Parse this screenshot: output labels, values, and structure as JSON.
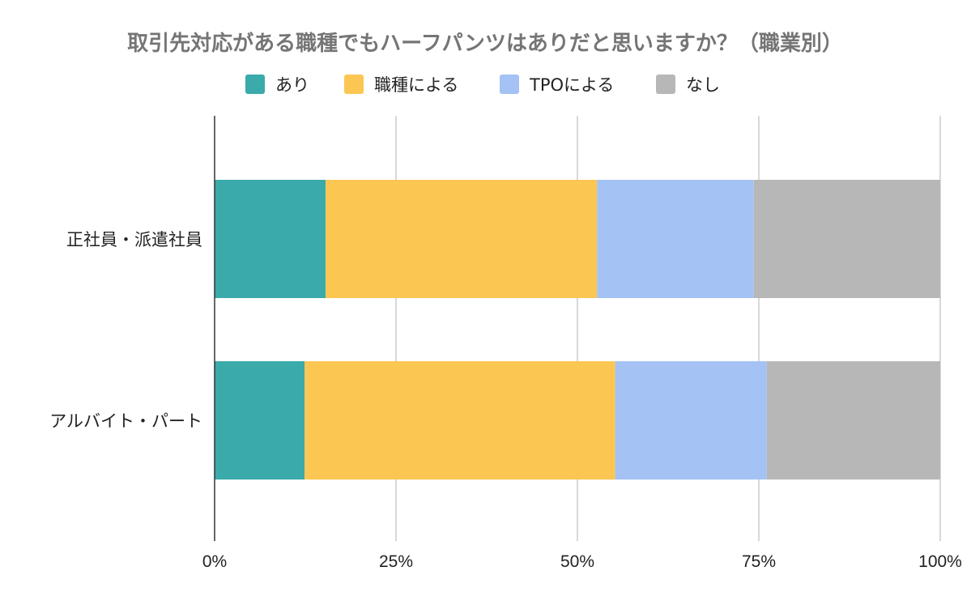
{
  "chart_data": {
    "type": "bar",
    "orientation": "horizontal",
    "stacked": true,
    "title": "取引先対応がある職種でもハーフパンツはありだと思いますか？（職業別）",
    "categories": [
      "正社員・派遣社員",
      "アルバイト・パート"
    ],
    "series": [
      {
        "name": "あり",
        "color": "#3aaaaa",
        "values": [
          15.3,
          12.4
        ]
      },
      {
        "name": "職種による",
        "color": "#fcc653",
        "values": [
          37.4,
          42.8
        ]
      },
      {
        "name": "TPOによる",
        "color": "#a4c2f4",
        "values": [
          21.6,
          20.9
        ]
      },
      {
        "name": "なし",
        "color": "#b7b7b7",
        "values": [
          25.7,
          23.9
        ]
      }
    ],
    "xlim": [
      0,
      100
    ],
    "x_ticks": [
      "0%",
      "25%",
      "50%",
      "75%",
      "100%"
    ],
    "grid": true,
    "legend_position": "top"
  }
}
